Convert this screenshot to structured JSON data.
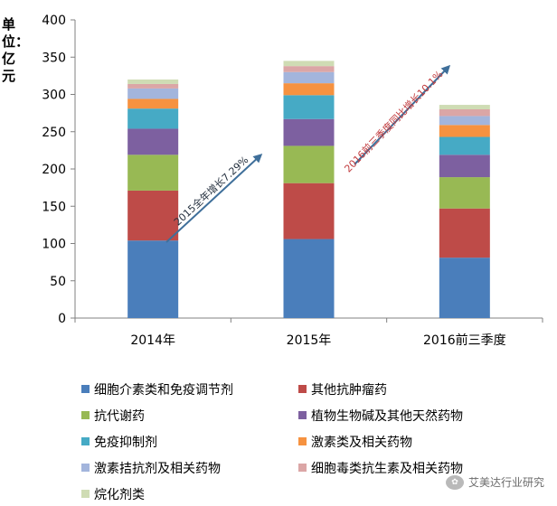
{
  "unit_label": "单位：亿元",
  "watermark": "艾美达行业研究",
  "chart_data": {
    "type": "bar",
    "stacked": true,
    "categories": [
      "2014年",
      "2015年",
      "2016前三季度"
    ],
    "ylim": [
      0,
      400
    ],
    "yticks": [
      0,
      50,
      100,
      150,
      200,
      250,
      300,
      350,
      400
    ],
    "grid": false,
    "legend_position": "bottom",
    "series": [
      {
        "name": "细胞介素类和免疫调节剂",
        "color": "#4a7ebb",
        "values": [
          104,
          106,
          81
        ]
      },
      {
        "name": "其他抗肿瘤药",
        "color": "#be4b48",
        "values": [
          67,
          75,
          66
        ]
      },
      {
        "name": "抗代谢药",
        "color": "#98b954",
        "values": [
          48,
          50,
          42
        ]
      },
      {
        "name": "植物生物碱及其他天然药物",
        "color": "#7d60a0",
        "values": [
          35,
          36,
          30
        ]
      },
      {
        "name": "免疫抑制剂",
        "color": "#46aac5",
        "values": [
          27,
          32,
          24
        ]
      },
      {
        "name": "激素类及相关药物",
        "color": "#f69240",
        "values": [
          13,
          16,
          16
        ]
      },
      {
        "name": "激素拮抗剂及相关药物",
        "color": "#a3b5dc",
        "values": [
          14,
          15,
          12
        ]
      },
      {
        "name": "细胞毒类抗生素及相关药物",
        "color": "#dba6a6",
        "values": [
          6,
          8,
          9
        ]
      },
      {
        "name": "烷化剂类",
        "color": "#cfdcb4",
        "values": [
          6,
          7,
          6
        ]
      }
    ],
    "annotations": [
      {
        "text": "2015全年增长7.29%",
        "color": "#1f2b3a",
        "between": [
          "2014年",
          "2015年"
        ]
      },
      {
        "text": "2016前三季度同比增长10.1%",
        "color": "#c0383b",
        "between": [
          "2015年",
          "2016前三季度"
        ]
      }
    ]
  }
}
